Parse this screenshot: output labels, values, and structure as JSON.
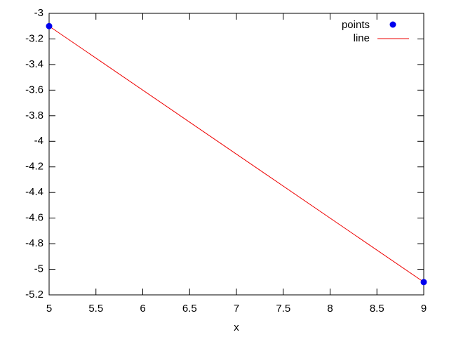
{
  "chart_data": {
    "type": "line",
    "xlabel": "x",
    "x": [
      5,
      9
    ],
    "series": [
      {
        "name": "points",
        "style": "points",
        "color": "#0000ee",
        "values": [
          -3.1,
          -5.1
        ]
      },
      {
        "name": "line",
        "style": "line",
        "color": "#ee0000",
        "values": [
          -3.1,
          -5.1
        ]
      }
    ],
    "xlim": [
      5,
      9
    ],
    "xticks": [
      5,
      5.5,
      6,
      6.5,
      7,
      7.5,
      8,
      8.5,
      9
    ],
    "ylim": [
      -5.2,
      -3
    ],
    "yticks": [
      -3,
      -3.2,
      -3.4,
      -3.6,
      -3.8,
      -4,
      -4.2,
      -4.4,
      -4.6,
      -4.8,
      -5,
      -5.2
    ],
    "legend": "top right",
    "grid": false
  }
}
